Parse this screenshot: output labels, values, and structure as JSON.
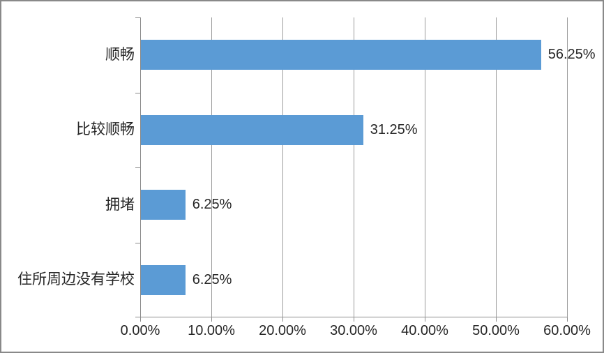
{
  "chart_data": {
    "type": "bar",
    "orientation": "horizontal",
    "title": "",
    "categories": [
      "顺畅",
      "比较顺畅",
      "拥堵",
      "住所周边没有学校"
    ],
    "values": [
      56.25,
      31.25,
      6.25,
      6.25
    ],
    "value_labels": [
      "56.25%",
      "31.25%",
      "6.25%",
      "6.25%"
    ],
    "x_axis": {
      "min": 0,
      "max": 60,
      "tick_values": [
        0,
        10,
        20,
        30,
        40,
        50,
        60
      ],
      "tick_labels": [
        "0.00%",
        "10.00%",
        "20.00%",
        "30.00%",
        "40.00%",
        "50.00%",
        "60.00%"
      ]
    },
    "grid": true,
    "legend": false,
    "colors": {
      "bar": "#5B9BD5",
      "gridline": "#9B9B9B",
      "axis": "#8C8C8C",
      "text": "#262626",
      "background": "#FFFFFF",
      "frame_border": "#898989"
    }
  }
}
